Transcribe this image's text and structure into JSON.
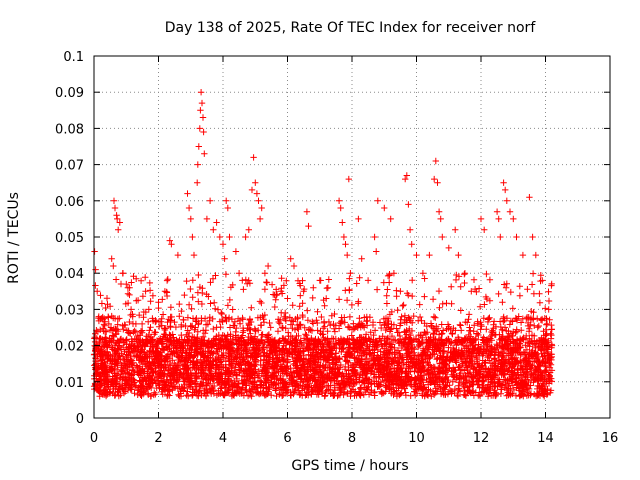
{
  "chart_data": {
    "type": "scatter",
    "title": "Day 138 of 2025, Rate Of TEC Index for receiver norf",
    "xlabel": "GPS time / hours",
    "ylabel": "ROTI / TECUs",
    "xlim": [
      0,
      16
    ],
    "ylim": [
      0,
      0.1
    ],
    "xticks": [
      "0",
      "2",
      "4",
      "6",
      "8",
      "10",
      "12",
      "14",
      "16"
    ],
    "yticks": [
      "0",
      "0.01",
      "0.02",
      "0.03",
      "0.04",
      "0.05",
      "0.06",
      "0.07",
      "0.08",
      "0.09",
      "0.1"
    ],
    "grid": true,
    "marker": "plus",
    "color": "#ff0000",
    "x_range_of_data": [
      0,
      14.2
    ],
    "series": [
      {
        "values_summary": "dense cloud of points mostly between 0.005 and 0.025 from 0 to 14.2 h",
        "points": [
          [
            0.02,
            0.046
          ],
          [
            0.05,
            0.041
          ],
          [
            0.1,
            0.035
          ],
          [
            0.15,
            0.028
          ],
          [
            0.2,
            0.022
          ],
          [
            0.25,
            0.018
          ],
          [
            0.55,
            0.044
          ],
          [
            0.6,
            0.042
          ],
          [
            0.62,
            0.06
          ],
          [
            0.65,
            0.058
          ],
          [
            0.7,
            0.056
          ],
          [
            0.72,
            0.055
          ],
          [
            0.75,
            0.052
          ],
          [
            0.8,
            0.054
          ],
          [
            0.9,
            0.04
          ],
          [
            1.0,
            0.037
          ],
          [
            1.05,
            0.036
          ],
          [
            1.1,
            0.034
          ],
          [
            1.15,
            0.03
          ],
          [
            1.2,
            0.028
          ],
          [
            1.6,
            0.035
          ],
          [
            1.7,
            0.03
          ],
          [
            2.0,
            0.032
          ],
          [
            2.2,
            0.035
          ],
          [
            2.35,
            0.049
          ],
          [
            2.4,
            0.048
          ],
          [
            2.6,
            0.045
          ],
          [
            2.9,
            0.062
          ],
          [
            2.95,
            0.058
          ],
          [
            3.0,
            0.055
          ],
          [
            3.05,
            0.05
          ],
          [
            3.1,
            0.045
          ],
          [
            3.2,
            0.065
          ],
          [
            3.22,
            0.07
          ],
          [
            3.25,
            0.075
          ],
          [
            3.28,
            0.08
          ],
          [
            3.3,
            0.085
          ],
          [
            3.32,
            0.09
          ],
          [
            3.35,
            0.087
          ],
          [
            3.38,
            0.083
          ],
          [
            3.4,
            0.079
          ],
          [
            3.42,
            0.073
          ],
          [
            3.5,
            0.055
          ],
          [
            3.6,
            0.06
          ],
          [
            3.7,
            0.052
          ],
          [
            3.8,
            0.054
          ],
          [
            3.9,
            0.05
          ],
          [
            4.0,
            0.048
          ],
          [
            4.05,
            0.044
          ],
          [
            4.1,
            0.06
          ],
          [
            4.15,
            0.058
          ],
          [
            4.2,
            0.05
          ],
          [
            4.4,
            0.046
          ],
          [
            4.5,
            0.04
          ],
          [
            4.6,
            0.038
          ],
          [
            4.7,
            0.05
          ],
          [
            4.8,
            0.052
          ],
          [
            4.9,
            0.063
          ],
          [
            4.95,
            0.072
          ],
          [
            5.0,
            0.065
          ],
          [
            5.05,
            0.062
          ],
          [
            5.1,
            0.06
          ],
          [
            5.15,
            0.055
          ],
          [
            5.2,
            0.058
          ],
          [
            5.3,
            0.04
          ],
          [
            5.4,
            0.042
          ],
          [
            5.6,
            0.034
          ],
          [
            5.8,
            0.035
          ],
          [
            6.0,
            0.033
          ],
          [
            6.1,
            0.044
          ],
          [
            6.2,
            0.042
          ],
          [
            6.5,
            0.035
          ],
          [
            6.6,
            0.057
          ],
          [
            6.65,
            0.053
          ],
          [
            6.8,
            0.036
          ],
          [
            7.0,
            0.038
          ],
          [
            7.2,
            0.033
          ],
          [
            7.6,
            0.06
          ],
          [
            7.65,
            0.058
          ],
          [
            7.7,
            0.054
          ],
          [
            7.75,
            0.05
          ],
          [
            7.8,
            0.048
          ],
          [
            7.85,
            0.045
          ],
          [
            7.9,
            0.066
          ],
          [
            7.95,
            0.04
          ],
          [
            8.2,
            0.055
          ],
          [
            8.3,
            0.044
          ],
          [
            8.5,
            0.038
          ],
          [
            8.7,
            0.05
          ],
          [
            8.75,
            0.046
          ],
          [
            8.8,
            0.06
          ],
          [
            9.0,
            0.058
          ],
          [
            9.2,
            0.055
          ],
          [
            9.3,
            0.04
          ],
          [
            9.5,
            0.035
          ],
          [
            9.65,
            0.066
          ],
          [
            9.7,
            0.067
          ],
          [
            9.75,
            0.059
          ],
          [
            9.8,
            0.052
          ],
          [
            9.85,
            0.048
          ],
          [
            10.0,
            0.045
          ],
          [
            10.2,
            0.04
          ],
          [
            10.4,
            0.045
          ],
          [
            10.55,
            0.066
          ],
          [
            10.6,
            0.071
          ],
          [
            10.65,
            0.065
          ],
          [
            10.7,
            0.057
          ],
          [
            10.75,
            0.055
          ],
          [
            10.8,
            0.05
          ],
          [
            11.0,
            0.047
          ],
          [
            11.2,
            0.052
          ],
          [
            11.3,
            0.045
          ],
          [
            11.5,
            0.04
          ],
          [
            11.7,
            0.035
          ],
          [
            12.0,
            0.055
          ],
          [
            12.1,
            0.052
          ],
          [
            12.5,
            0.057
          ],
          [
            12.55,
            0.055
          ],
          [
            12.6,
            0.05
          ],
          [
            12.7,
            0.065
          ],
          [
            12.75,
            0.063
          ],
          [
            12.8,
            0.06
          ],
          [
            12.9,
            0.057
          ],
          [
            13.0,
            0.055
          ],
          [
            13.1,
            0.05
          ],
          [
            13.3,
            0.045
          ],
          [
            13.5,
            0.061
          ],
          [
            13.6,
            0.05
          ],
          [
            13.7,
            0.045
          ],
          [
            13.9,
            0.038
          ],
          [
            14.1,
            0.03
          ],
          [
            14.2,
            0.02
          ]
        ]
      }
    ]
  }
}
